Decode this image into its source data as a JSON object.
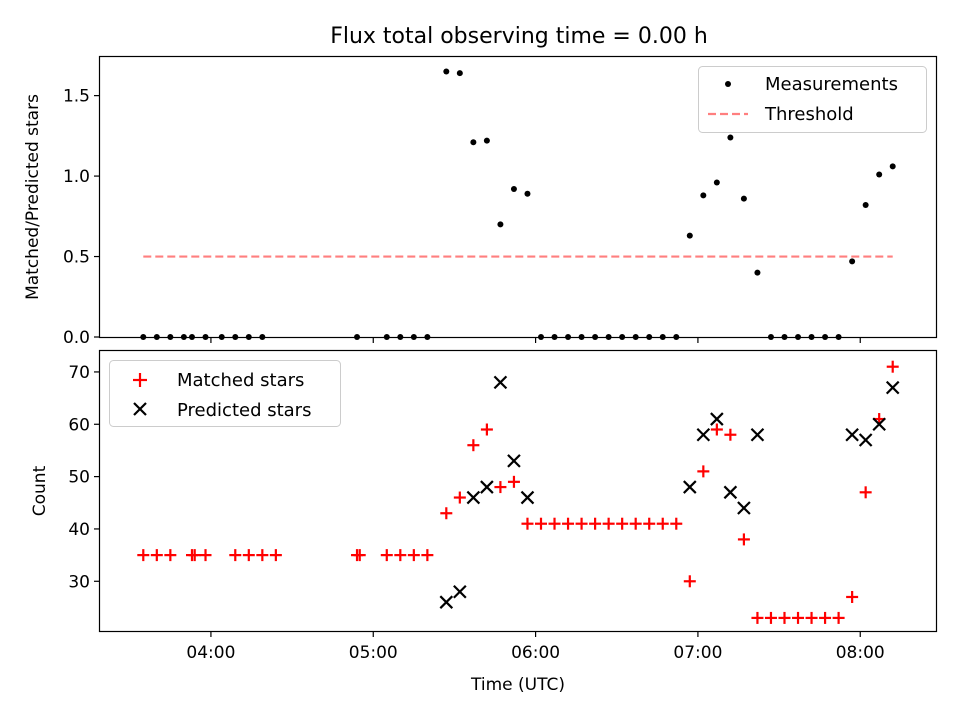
{
  "figure": {
    "title": "Flux total observing time = 0.00 h"
  },
  "chart_data": [
    {
      "type": "scatter",
      "title": "Flux total observing time = 0.00 h",
      "ylabel": "Matched/Predicted stars",
      "xlabel": "",
      "xlim": [
        "03:19",
        "08:28"
      ],
      "ylim": [
        0,
        1.74
      ],
      "x_ticks": [
        "04:00",
        "05:00",
        "06:00",
        "07:00",
        "08:00"
      ],
      "x_tick_labels_shown": false,
      "y_ticks": [
        0.0,
        0.5,
        1.0,
        1.5
      ],
      "y_tick_labels": [
        "0.0",
        "0.5",
        "1.0",
        "1.5"
      ],
      "grid": false,
      "legend": {
        "position": "top-right",
        "entries": [
          "Measurements",
          "Threshold"
        ]
      },
      "threshold": {
        "name": "Threshold",
        "value": 0.5,
        "from": "03:35",
        "to": "08:12",
        "color": "#ff7f7f",
        "style": "dashed"
      },
      "series": [
        {
          "name": "Measurements",
          "marker": "dot",
          "color": "#000000",
          "points": [
            [
              "03:35",
              0
            ],
            [
              "03:40",
              0
            ],
            [
              "03:45",
              0
            ],
            [
              "03:50",
              0
            ],
            [
              "03:53",
              0
            ],
            [
              "03:58",
              0
            ],
            [
              "04:04",
              0
            ],
            [
              "04:09",
              0
            ],
            [
              "04:14",
              0
            ],
            [
              "04:19",
              0
            ],
            [
              "04:54",
              0
            ],
            [
              "05:05",
              0
            ],
            [
              "05:10",
              0
            ],
            [
              "05:15",
              0
            ],
            [
              "05:20",
              0
            ],
            [
              "05:27",
              1.65
            ],
            [
              "05:32",
              1.64
            ],
            [
              "05:37",
              1.21
            ],
            [
              "05:42",
              1.22
            ],
            [
              "05:47",
              0.7
            ],
            [
              "05:52",
              0.92
            ],
            [
              "05:57",
              0.89
            ],
            [
              "06:02",
              0
            ],
            [
              "06:07",
              0
            ],
            [
              "06:12",
              0
            ],
            [
              "06:17",
              0
            ],
            [
              "06:22",
              0
            ],
            [
              "06:27",
              0
            ],
            [
              "06:32",
              0
            ],
            [
              "06:37",
              0
            ],
            [
              "06:42",
              0
            ],
            [
              "06:47",
              0
            ],
            [
              "06:52",
              0
            ],
            [
              "06:57",
              0.63
            ],
            [
              "07:02",
              0.88
            ],
            [
              "07:07",
              0.96
            ],
            [
              "07:12",
              1.24
            ],
            [
              "07:17",
              0.86
            ],
            [
              "07:22",
              0.4
            ],
            [
              "07:27",
              0
            ],
            [
              "07:32",
              0
            ],
            [
              "07:37",
              0
            ],
            [
              "07:42",
              0
            ],
            [
              "07:47",
              0
            ],
            [
              "07:52",
              0
            ],
            [
              "07:57",
              0.47
            ],
            [
              "08:02",
              0.82
            ],
            [
              "08:07",
              1.01
            ],
            [
              "08:12",
              1.06
            ]
          ]
        }
      ]
    },
    {
      "type": "scatter",
      "title": "",
      "xlabel": "Time (UTC)",
      "ylabel": "Count",
      "xlim": [
        "03:19",
        "08:28"
      ],
      "ylim": [
        20.5,
        74.0
      ],
      "x_ticks": [
        "04:00",
        "05:00",
        "06:00",
        "07:00",
        "08:00"
      ],
      "x_tick_labels": [
        "04:00",
        "05:00",
        "06:00",
        "07:00",
        "08:00"
      ],
      "y_ticks": [
        30,
        40,
        50,
        60,
        70
      ],
      "y_tick_labels": [
        "30",
        "40",
        "50",
        "60",
        "70"
      ],
      "grid": false,
      "legend": {
        "position": "top-left",
        "entries": [
          "Matched stars",
          "Predicted stars"
        ]
      },
      "series": [
        {
          "name": "Matched stars",
          "marker": "plus",
          "color": "#ff0000",
          "points": [
            [
              "03:35",
              35
            ],
            [
              "03:40",
              35
            ],
            [
              "03:45",
              35
            ],
            [
              "03:53",
              35
            ],
            [
              "03:54",
              35
            ],
            [
              "03:58",
              35
            ],
            [
              "04:09",
              35
            ],
            [
              "04:14",
              35
            ],
            [
              "04:19",
              35
            ],
            [
              "04:24",
              35
            ],
            [
              "04:54",
              35
            ],
            [
              "04:55",
              35
            ],
            [
              "05:05",
              35
            ],
            [
              "05:10",
              35
            ],
            [
              "05:15",
              35
            ],
            [
              "05:20",
              35
            ],
            [
              "05:27",
              43
            ],
            [
              "05:32",
              46
            ],
            [
              "05:37",
              56
            ],
            [
              "05:42",
              59
            ],
            [
              "05:47",
              48
            ],
            [
              "05:52",
              49
            ],
            [
              "05:57",
              41
            ],
            [
              "06:02",
              41
            ],
            [
              "06:07",
              41
            ],
            [
              "06:12",
              41
            ],
            [
              "06:17",
              41
            ],
            [
              "06:22",
              41
            ],
            [
              "06:27",
              41
            ],
            [
              "06:32",
              41
            ],
            [
              "06:37",
              41
            ],
            [
              "06:42",
              41
            ],
            [
              "06:47",
              41
            ],
            [
              "06:52",
              41
            ],
            [
              "06:57",
              30
            ],
            [
              "07:02",
              51
            ],
            [
              "07:07",
              59
            ],
            [
              "07:12",
              58
            ],
            [
              "07:17",
              38
            ],
            [
              "07:22",
              23
            ],
            [
              "07:27",
              23
            ],
            [
              "07:32",
              23
            ],
            [
              "07:37",
              23
            ],
            [
              "07:42",
              23
            ],
            [
              "07:47",
              23
            ],
            [
              "07:52",
              23
            ],
            [
              "07:57",
              27
            ],
            [
              "08:02",
              47
            ],
            [
              "08:07",
              61
            ],
            [
              "08:12",
              71
            ]
          ]
        },
        {
          "name": "Predicted stars",
          "marker": "x",
          "color": "#000000",
          "points": [
            [
              "05:27",
              26
            ],
            [
              "05:32",
              28
            ],
            [
              "05:37",
              46
            ],
            [
              "05:42",
              48
            ],
            [
              "05:47",
              68
            ],
            [
              "05:52",
              53
            ],
            [
              "05:57",
              46
            ],
            [
              "06:57",
              48
            ],
            [
              "07:02",
              58
            ],
            [
              "07:07",
              61
            ],
            [
              "07:12",
              47
            ],
            [
              "07:17",
              44
            ],
            [
              "07:22",
              58
            ],
            [
              "07:57",
              58
            ],
            [
              "08:02",
              57
            ],
            [
              "08:07",
              60
            ],
            [
              "08:12",
              67
            ]
          ]
        }
      ]
    }
  ]
}
